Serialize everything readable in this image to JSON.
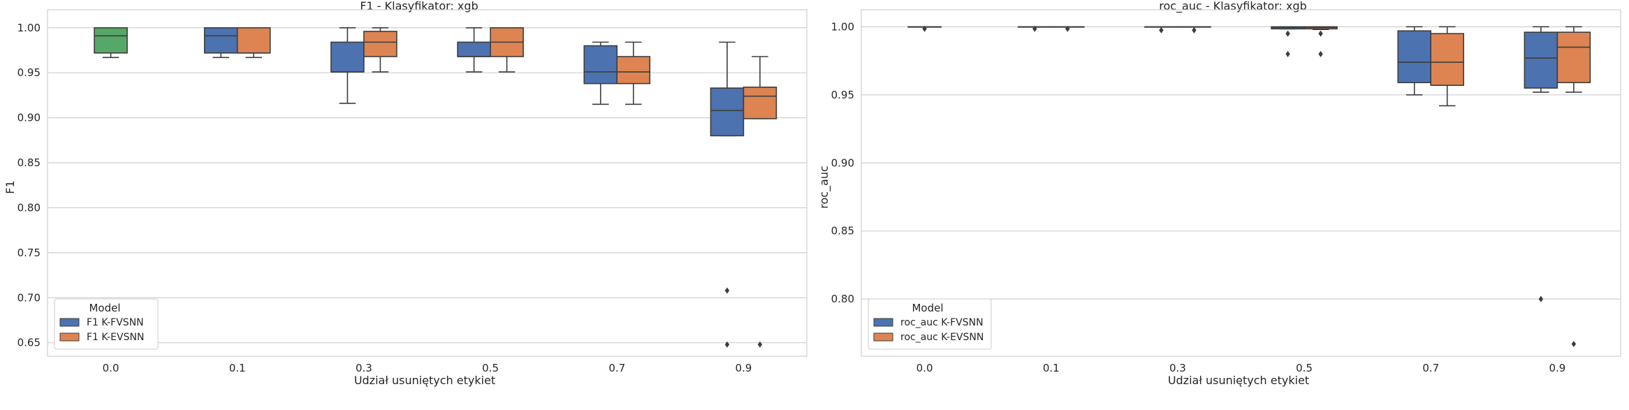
{
  "colors": {
    "k_fvsnn": "#4c72b0",
    "k_evsnn": "#dd8452",
    "green": "#55a868",
    "line": "#3d3d3d",
    "grid": "#cfcfcf",
    "frame": "#cfcfcf"
  },
  "chart_data": [
    {
      "type": "box",
      "title": "F1 - Klasyfikator: xgb",
      "xlabel": "Udział usuniętych etykiet",
      "ylabel": "F1",
      "categories": [
        "0.0",
        "0.1",
        "0.3",
        "0.5",
        "0.7",
        "0.9"
      ],
      "ylim": [
        0.635,
        1.02
      ],
      "yticks": [
        "0.65",
        "0.70",
        "0.75",
        "0.80",
        "0.85",
        "0.90",
        "0.95",
        "1.00"
      ],
      "ytick_values": [
        0.65,
        0.7,
        0.75,
        0.8,
        0.85,
        0.9,
        0.95,
        1.0
      ],
      "grid": true,
      "legend": {
        "title": "Model",
        "position": "lower-left",
        "entries": [
          "F1 K-FVSNN",
          "F1 K-EVSNN"
        ]
      },
      "boxes": [
        {
          "category": "0.0",
          "series": "single",
          "color": "green",
          "whislo": 0.967,
          "q1": 0.972,
          "med": 0.991,
          "q3": 1.0,
          "whishi": 1.0,
          "fliers": []
        },
        {
          "category": "0.1",
          "series": "F1 K-FVSNN",
          "color": "k_fvsnn",
          "whislo": 0.967,
          "q1": 0.972,
          "med": 0.991,
          "q3": 1.0,
          "whishi": 1.0,
          "fliers": []
        },
        {
          "category": "0.1",
          "series": "F1 K-EVSNN",
          "color": "k_evsnn",
          "whislo": 0.967,
          "q1": 0.972,
          "med": 0.972,
          "q3": 1.0,
          "whishi": 1.0,
          "fliers": []
        },
        {
          "category": "0.3",
          "series": "F1 K-FVSNN",
          "color": "k_fvsnn",
          "whislo": 0.916,
          "q1": 0.951,
          "med": 0.951,
          "q3": 0.984,
          "whishi": 1.0,
          "fliers": []
        },
        {
          "category": "0.3",
          "series": "F1 K-EVSNN",
          "color": "k_evsnn",
          "whislo": 0.951,
          "q1": 0.968,
          "med": 0.984,
          "q3": 0.996,
          "whishi": 1.0,
          "fliers": []
        },
        {
          "category": "0.5",
          "series": "F1 K-FVSNN",
          "color": "k_fvsnn",
          "whislo": 0.951,
          "q1": 0.968,
          "med": 0.968,
          "q3": 0.984,
          "whishi": 1.0,
          "fliers": []
        },
        {
          "category": "0.5",
          "series": "F1 K-EVSNN",
          "color": "k_evsnn",
          "whislo": 0.951,
          "q1": 0.968,
          "med": 0.984,
          "q3": 1.0,
          "whishi": 1.0,
          "fliers": []
        },
        {
          "category": "0.7",
          "series": "F1 K-FVSNN",
          "color": "k_fvsnn",
          "whislo": 0.915,
          "q1": 0.938,
          "med": 0.951,
          "q3": 0.98,
          "whishi": 0.984,
          "fliers": []
        },
        {
          "category": "0.7",
          "series": "F1 K-EVSNN",
          "color": "k_evsnn",
          "whislo": 0.915,
          "q1": 0.938,
          "med": 0.951,
          "q3": 0.968,
          "whishi": 0.984,
          "fliers": []
        },
        {
          "category": "0.9",
          "series": "F1 K-FVSNN",
          "color": "k_fvsnn",
          "whislo": 0.88,
          "q1": 0.88,
          "med": 0.908,
          "q3": 0.933,
          "whishi": 0.984,
          "fliers": [
            0.708,
            0.648
          ]
        },
        {
          "category": "0.9",
          "series": "F1 K-EVSNN",
          "color": "k_evsnn",
          "whislo": 0.899,
          "q1": 0.899,
          "med": 0.924,
          "q3": 0.934,
          "whishi": 0.968,
          "fliers": [
            0.648
          ]
        }
      ]
    },
    {
      "type": "box",
      "title": "roc_auc - Klasyfikator: xgb",
      "xlabel": "Udział usuniętych etykiet",
      "ylabel": "roc_auc",
      "categories": [
        "0.0",
        "0.1",
        "0.3",
        "0.5",
        "0.7",
        "0.9"
      ],
      "ylim": [
        0.758,
        1.0125
      ],
      "yticks": [
        "0.80",
        "0.85",
        "0.90",
        "0.95",
        "1.00"
      ],
      "ytick_values": [
        0.8,
        0.85,
        0.9,
        0.95,
        1.0
      ],
      "grid": true,
      "legend": {
        "title": "Model",
        "position": "lower-left",
        "entries": [
          "roc_auc K-FVSNN",
          "roc_auc K-EVSNN"
        ]
      },
      "boxes": [
        {
          "category": "0.0",
          "series": "single",
          "color": "green",
          "whislo": 1.0,
          "q1": 1.0,
          "med": 1.0,
          "q3": 1.0,
          "whishi": 1.0,
          "fliers": [
            0.9985
          ]
        },
        {
          "category": "0.1",
          "series": "roc_auc K-FVSNN",
          "color": "k_fvsnn",
          "whislo": 1.0,
          "q1": 1.0,
          "med": 1.0,
          "q3": 1.0,
          "whishi": 1.0,
          "fliers": [
            0.9985
          ]
        },
        {
          "category": "0.1",
          "series": "roc_auc K-EVSNN",
          "color": "k_evsnn",
          "whislo": 1.0,
          "q1": 1.0,
          "med": 1.0,
          "q3": 1.0,
          "whishi": 1.0,
          "fliers": [
            0.9985
          ]
        },
        {
          "category": "0.3",
          "series": "roc_auc K-FVSNN",
          "color": "k_fvsnn",
          "whislo": 1.0,
          "q1": 1.0,
          "med": 1.0,
          "q3": 1.0,
          "whishi": 1.0,
          "fliers": [
            0.9975
          ]
        },
        {
          "category": "0.3",
          "series": "roc_auc K-EVSNN",
          "color": "k_evsnn",
          "whislo": 1.0,
          "q1": 1.0,
          "med": 1.0,
          "q3": 1.0,
          "whishi": 1.0,
          "fliers": [
            0.9975
          ]
        },
        {
          "category": "0.5",
          "series": "roc_auc K-FVSNN",
          "color": "k_fvsnn",
          "whislo": 0.9985,
          "q1": 0.9985,
          "med": 0.9995,
          "q3": 1.0,
          "whishi": 1.0,
          "fliers": [
            0.995,
            0.98
          ]
        },
        {
          "category": "0.5",
          "series": "roc_auc K-EVSNN",
          "color": "k_evsnn",
          "whislo": 0.998,
          "q1": 0.9985,
          "med": 0.9995,
          "q3": 1.0,
          "whishi": 1.0,
          "fliers": [
            0.995,
            0.98
          ]
        },
        {
          "category": "0.7",
          "series": "roc_auc K-FVSNN",
          "color": "k_fvsnn",
          "whislo": 0.95,
          "q1": 0.959,
          "med": 0.974,
          "q3": 0.997,
          "whishi": 1.0,
          "fliers": []
        },
        {
          "category": "0.7",
          "series": "roc_auc K-EVSNN",
          "color": "k_evsnn",
          "whislo": 0.942,
          "q1": 0.957,
          "med": 0.974,
          "q3": 0.995,
          "whishi": 1.0,
          "fliers": []
        },
        {
          "category": "0.9",
          "series": "roc_auc K-FVSNN",
          "color": "k_fvsnn",
          "whislo": 0.952,
          "q1": 0.955,
          "med": 0.977,
          "q3": 0.996,
          "whishi": 1.0,
          "fliers": [
            0.8
          ]
        },
        {
          "category": "0.9",
          "series": "roc_auc K-EVSNN",
          "color": "k_evsnn",
          "whislo": 0.952,
          "q1": 0.959,
          "med": 0.985,
          "q3": 0.996,
          "whishi": 1.0,
          "fliers": [
            0.767
          ]
        }
      ]
    }
  ]
}
